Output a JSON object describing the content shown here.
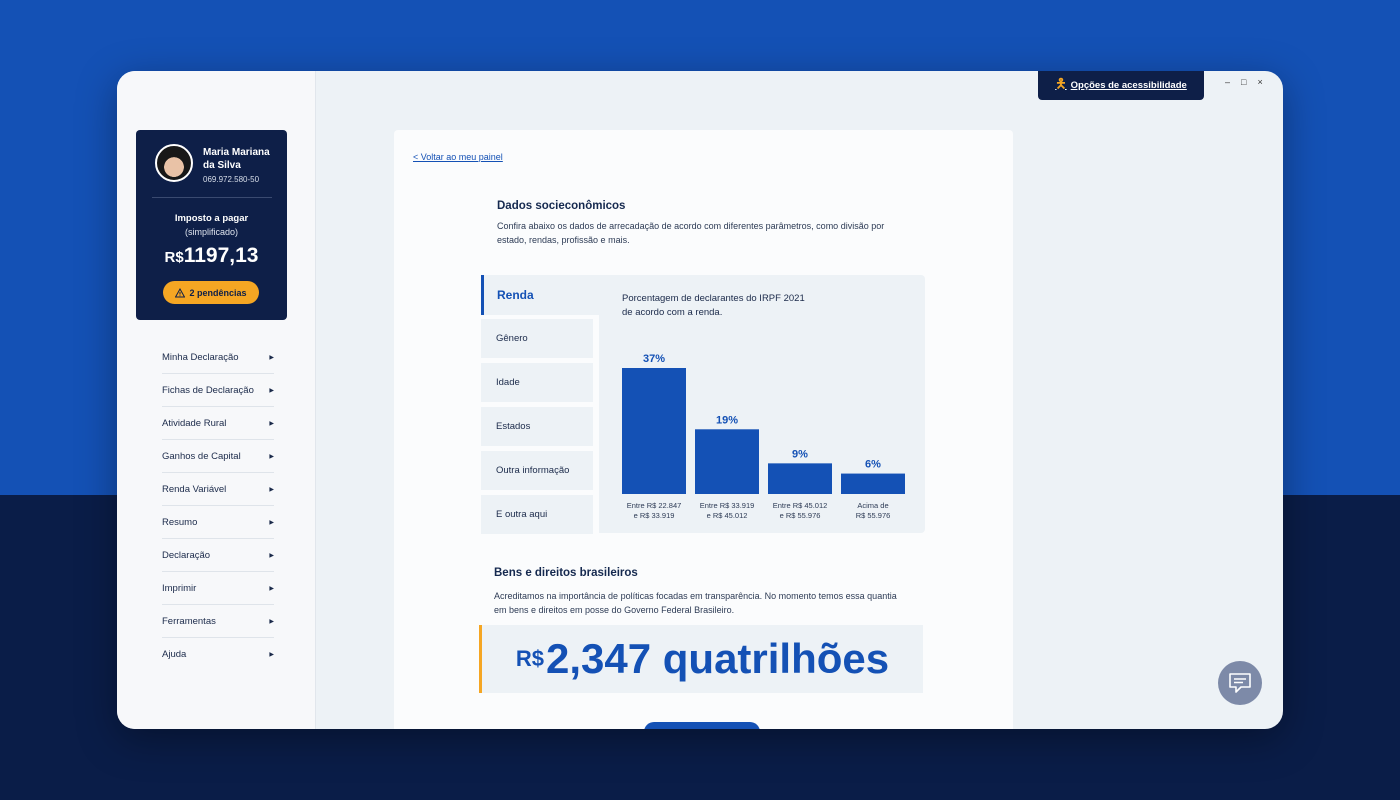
{
  "profile": {
    "name": "Maria Mariana da Silva",
    "cpf": "069.972.580-50",
    "tax_label": "Imposto a pagar",
    "tax_sub": "(simplificado)",
    "tax_currency": "R$",
    "tax_value": "1197,13",
    "pending_label": "2 pendências"
  },
  "nav": {
    "items": [
      "Minha Declaração",
      "Fichas de Declaração",
      "Atividade Rural",
      "Ganhos de Capital",
      "Renda Variável",
      "Resumo",
      "Declaração",
      "Imprimir",
      "Ferramentas",
      "Ajuda"
    ]
  },
  "header": {
    "accessibility_label": "Opções de acessibilidade",
    "minimize": "–",
    "maximize": "□",
    "close": "×"
  },
  "content": {
    "back_link": "< Voltar ao meu painel",
    "title": "Dados socieconômicos",
    "description": "Confira abaixo os dados de arrecadação de acordo com diferentes parâmetros, como divisão por estado, rendas, profissão e mais.",
    "tabs": [
      "Renda",
      "Gênero",
      "Idade",
      "Estados",
      "Outra informação",
      "E outra aqui"
    ],
    "active_tab": "Renda",
    "chart_title_line1": "Porcentagem de declarantes do IRPF 2021",
    "chart_title_line2": "de acordo com a renda.",
    "assets_title": "Bens e direitos brasileiros",
    "assets_desc": "Acreditamos na importância de políticas focadas em transparência. No momento temos essa quantia em bens e direitos em posse do Governo Federal Brasileiro.",
    "assets_currency": "R$",
    "assets_value": "2,347 quatrilhões"
  },
  "chart_data": {
    "type": "bar",
    "title": "Porcentagem de declarantes do IRPF 2021 de acordo com a renda.",
    "categories": [
      [
        "Entre R$ 22.847",
        "e R$ 33.919"
      ],
      [
        "Entre R$ 33.919",
        "e R$ 45.012"
      ],
      [
        "Entre R$ 45.012",
        "e R$ 55.976"
      ],
      [
        "Acima de",
        "R$ 55.976"
      ]
    ],
    "values": [
      37,
      19,
      9,
      6
    ],
    "value_labels": [
      "37%",
      "19%",
      "9%",
      "6%"
    ],
    "unit": "%",
    "ylim": [
      0,
      37
    ],
    "grid": false,
    "bar_color": "#1451b5"
  },
  "colors": {
    "brand_blue": "#1451b5",
    "navy": "#0e1f48",
    "accent_orange": "#f5a623"
  }
}
